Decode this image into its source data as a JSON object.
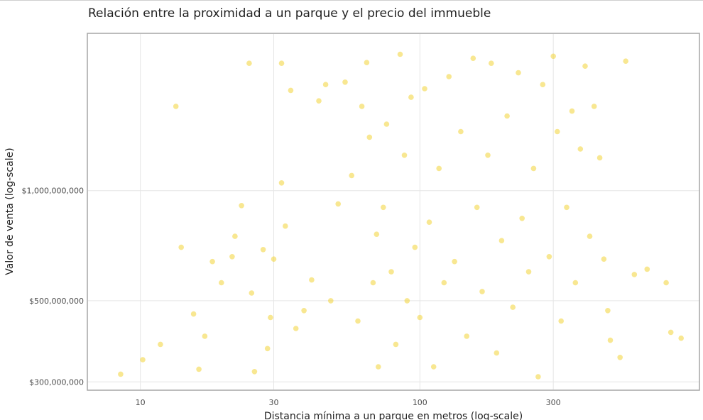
{
  "chart_data": {
    "type": "scatter",
    "title": "Relación entre la proximidad a un parque y el precio del immueble",
    "xlabel": "Distancia mínima a un parque en metros (log-scale)",
    "ylabel": "Valor de venta  (log-scale)",
    "x_scale": "log",
    "y_scale": "log",
    "xlim": [
      6.5,
      1000
    ],
    "ylim": [
      286000000,
      2680000000
    ],
    "x_ticks": [
      {
        "value": 10,
        "label": "10"
      },
      {
        "value": 30,
        "label": "30"
      },
      {
        "value": 100,
        "label": "100"
      },
      {
        "value": 300,
        "label": "300"
      }
    ],
    "y_ticks": [
      {
        "value": 300000000,
        "label": "$300,000,000"
      },
      {
        "value": 500000000,
        "label": "$500,000,000"
      },
      {
        "value": 1000000000,
        "label": "$1,000,000,000"
      }
    ],
    "grid": true,
    "legend": "none",
    "point_color": "#f2d024",
    "point_opacity": 0.5,
    "series": [
      {
        "points": [
          [
            8.5,
            315000000
          ],
          [
            10.2,
            345000000
          ],
          [
            11.8,
            380000000
          ],
          [
            13.4,
            1700000000
          ],
          [
            14.0,
            700000000
          ],
          [
            15.5,
            460000000
          ],
          [
            16.2,
            325000000
          ],
          [
            17.0,
            400000000
          ],
          [
            18.1,
            640000000
          ],
          [
            19.5,
            560000000
          ],
          [
            21.3,
            660000000
          ],
          [
            21.8,
            750000000
          ],
          [
            23.0,
            910000000
          ],
          [
            24.5,
            2230000000
          ],
          [
            25.0,
            525000000
          ],
          [
            25.6,
            320000000
          ],
          [
            27.5,
            690000000
          ],
          [
            28.5,
            370000000
          ],
          [
            29.2,
            450000000
          ],
          [
            30.0,
            650000000
          ],
          [
            32.0,
            2230000000
          ],
          [
            32.0,
            1050000000
          ],
          [
            33.0,
            800000000
          ],
          [
            34.5,
            1880000000
          ],
          [
            36.0,
            420000000
          ],
          [
            38.5,
            470000000
          ],
          [
            41.0,
            570000000
          ],
          [
            43.5,
            1760000000
          ],
          [
            46.0,
            1950000000
          ],
          [
            48.0,
            500000000
          ],
          [
            51.0,
            920000000
          ],
          [
            54.0,
            1980000000
          ],
          [
            57.0,
            1100000000
          ],
          [
            60.0,
            440000000
          ],
          [
            62.0,
            1700000000
          ],
          [
            64.5,
            2240000000
          ],
          [
            66.0,
            1400000000
          ],
          [
            68.0,
            560000000
          ],
          [
            70.0,
            760000000
          ],
          [
            71.0,
            330000000
          ],
          [
            74.0,
            900000000
          ],
          [
            76.0,
            1520000000
          ],
          [
            79.0,
            600000000
          ],
          [
            82.0,
            380000000
          ],
          [
            85.0,
            2360000000
          ],
          [
            88.0,
            1250000000
          ],
          [
            90.0,
            500000000
          ],
          [
            93.0,
            1800000000
          ],
          [
            96.0,
            700000000
          ],
          [
            100.0,
            450000000
          ],
          [
            104.0,
            1900000000
          ],
          [
            108.0,
            820000000
          ],
          [
            112.0,
            330000000
          ],
          [
            117.0,
            1150000000
          ],
          [
            122.0,
            560000000
          ],
          [
            127.0,
            2050000000
          ],
          [
            133.0,
            640000000
          ],
          [
            140.0,
            1450000000
          ],
          [
            147.0,
            400000000
          ],
          [
            155.0,
            2300000000
          ],
          [
            160.0,
            900000000
          ],
          [
            167.0,
            530000000
          ],
          [
            175.0,
            1250000000
          ],
          [
            180.0,
            2230000000
          ],
          [
            188.0,
            360000000
          ],
          [
            196.0,
            730000000
          ],
          [
            205.0,
            1600000000
          ],
          [
            215.0,
            480000000
          ],
          [
            225.0,
            2100000000
          ],
          [
            232.0,
            840000000
          ],
          [
            245.0,
            600000000
          ],
          [
            255.0,
            1150000000
          ],
          [
            265.0,
            310000000
          ],
          [
            275.0,
            1950000000
          ],
          [
            290.0,
            660000000
          ],
          [
            300.0,
            2330000000
          ],
          [
            310.0,
            1450000000
          ],
          [
            320.0,
            440000000
          ],
          [
            335.0,
            900000000
          ],
          [
            350.0,
            1650000000
          ],
          [
            360.0,
            560000000
          ],
          [
            375.0,
            1300000000
          ],
          [
            390.0,
            2190000000
          ],
          [
            405.0,
            750000000
          ],
          [
            420.0,
            1700000000
          ],
          [
            440.0,
            1230000000
          ],
          [
            455.0,
            650000000
          ],
          [
            470.0,
            470000000
          ],
          [
            480.0,
            390000000
          ],
          [
            520.0,
            350000000
          ],
          [
            545.0,
            2260000000
          ],
          [
            585.0,
            590000000
          ],
          [
            650.0,
            610000000
          ],
          [
            760.0,
            560000000
          ],
          [
            790.0,
            410000000
          ],
          [
            860.0,
            395000000
          ]
        ]
      }
    ]
  }
}
